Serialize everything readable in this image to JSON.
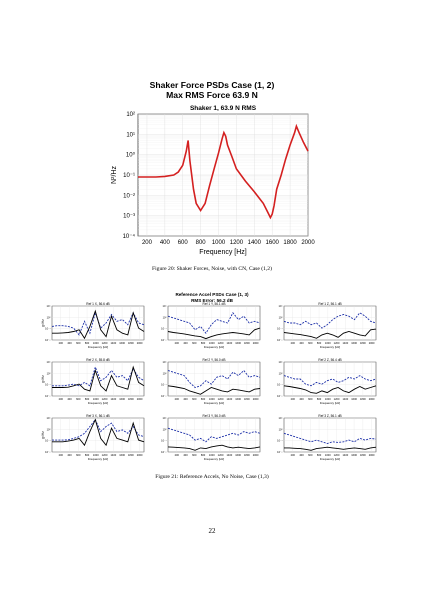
{
  "figure1": {
    "title_line1": "Shaker Force PSDs Case (1, 2)",
    "title_line2": "Max RMS Force 63.9 N",
    "caption": "Figure 20: Shaker Forces, Noise, with CN, Case (1,2)",
    "chart_data": {
      "type": "line",
      "subtitle": "Shaker 1, 63.9 N RMS",
      "xlabel": "Frequency [Hz]",
      "ylabel": "N²/Hz",
      "xlim": [
        100,
        2000
      ],
      "ylim": [
        0.0001,
        100
      ],
      "yscale": "log",
      "xticks": [
        "200",
        "400",
        "600",
        "800",
        "1000",
        "1200",
        "1400",
        "1600",
        "1800",
        "2000"
      ],
      "yticks": [
        "10⁻⁴",
        "10⁻³",
        "10⁻²",
        "10⁻¹",
        "10⁰",
        "10¹",
        "10²"
      ],
      "grid": true,
      "series": [
        {
          "color": "#d42020",
          "x": [
            100,
            200,
            300,
            400,
            500,
            550,
            600,
            640,
            660,
            680,
            700,
            720,
            750,
            800,
            850,
            900,
            950,
            1000,
            1040,
            1060,
            1080,
            1100,
            1150,
            1200,
            1300,
            1400,
            1500,
            1550,
            1580,
            1600,
            1620,
            1650,
            1700,
            1750,
            1800,
            1850,
            1870,
            1900,
            1950,
            2000
          ],
          "y": [
            0.08,
            0.08,
            0.08,
            0.085,
            0.1,
            0.14,
            0.3,
            1.5,
            5,
            0.5,
            0.1,
            0.02,
            0.004,
            0.0018,
            0.004,
            0.03,
            0.2,
            1.2,
            6,
            12,
            8,
            3,
            0.8,
            0.2,
            0.05,
            0.015,
            0.004,
            0.0015,
            0.0008,
            0.0012,
            0.003,
            0.02,
            0.1,
            0.6,
            3,
            12,
            25,
            12,
            4,
            1.5
          ]
        }
      ]
    }
  },
  "figure2": {
    "title_line1": "Reference Accel PSDs Case (1, 3)",
    "title_line2": "RMS Error: 56.2 dB",
    "caption": "Figure 21: Reference Accels, No Noise, Case (1,3)",
    "xlabel": "Frequency [Hz]",
    "ylabel": "g²/Hz",
    "xticks": [
      "200",
      "400",
      "600",
      "800",
      "1000",
      "1200",
      "1400",
      "1600",
      "1800",
      "2000"
    ],
    "yticks": [
      "10⁴",
      "10⁰",
      "10⁻⁴",
      "10⁻⁸"
    ],
    "panels": [
      {
        "label": "Ref 1 X, 56.6 dB",
        "black": [
          0.2,
          0.2,
          0.21,
          0.22,
          0.25,
          0.3,
          0.05,
          0.4,
          0.85,
          0.3,
          0.1,
          0.7,
          0.3,
          0.2,
          0.15,
          0.8,
          0.35,
          0.25
        ],
        "blue": [
          0.4,
          0.42,
          0.42,
          0.4,
          0.35,
          0.15,
          0.55,
          0.2,
          0.8,
          0.35,
          0.5,
          0.75,
          0.55,
          0.6,
          0.45,
          0.8,
          0.5,
          0.45
        ]
      },
      {
        "label": "Ref 1 Y, 56.1 dB",
        "black": [
          0.25,
          0.22,
          0.2,
          0.18,
          0.15,
          0.12,
          0.1,
          0.04,
          0.1,
          0.15,
          0.18,
          0.2,
          0.22,
          0.2,
          0.18,
          0.15,
          0.3,
          0.35
        ],
        "blue": [
          0.7,
          0.65,
          0.6,
          0.55,
          0.5,
          0.3,
          0.4,
          0.2,
          0.45,
          0.6,
          0.55,
          0.5,
          0.8,
          0.6,
          0.7,
          0.5,
          0.55,
          0.5
        ]
      },
      {
        "label": "Ref 1 Z, 56.1 dB",
        "black": [
          0.22,
          0.2,
          0.18,
          0.16,
          0.13,
          0.1,
          0.05,
          0.15,
          0.2,
          0.15,
          0.08,
          0.2,
          0.25,
          0.2,
          0.15,
          0.12,
          0.3,
          0.32
        ],
        "blue": [
          0.55,
          0.5,
          0.5,
          0.45,
          0.55,
          0.45,
          0.5,
          0.35,
          0.45,
          0.6,
          0.7,
          0.75,
          0.7,
          0.6,
          0.8,
          0.7,
          0.55,
          0.5
        ]
      },
      {
        "label": "Ref 2 X, 55.8 dB",
        "black": [
          0.25,
          0.25,
          0.25,
          0.26,
          0.3,
          0.35,
          0.2,
          0.15,
          0.75,
          0.3,
          0.15,
          0.6,
          0.3,
          0.25,
          0.2,
          0.85,
          0.4,
          0.3
        ],
        "blue": [
          0.3,
          0.3,
          0.3,
          0.32,
          0.35,
          0.3,
          0.4,
          0.3,
          0.85,
          0.45,
          0.55,
          0.75,
          0.55,
          0.6,
          0.45,
          0.8,
          0.55,
          0.45
        ]
      },
      {
        "label": "Ref 2 Y, 56.0 dB",
        "black": [
          0.3,
          0.28,
          0.25,
          0.22,
          0.15,
          0.1,
          0.05,
          0.15,
          0.25,
          0.2,
          0.15,
          0.12,
          0.2,
          0.18,
          0.15,
          0.12,
          0.2,
          0.22
        ],
        "blue": [
          0.75,
          0.7,
          0.65,
          0.6,
          0.4,
          0.25,
          0.3,
          0.45,
          0.35,
          0.55,
          0.6,
          0.5,
          0.7,
          0.6,
          0.75,
          0.55,
          0.6,
          0.55
        ]
      },
      {
        "label": "Ref 2 Z, 56.4 dB",
        "black": [
          0.3,
          0.28,
          0.25,
          0.22,
          0.18,
          0.1,
          0.08,
          0.15,
          0.1,
          0.2,
          0.25,
          0.15,
          0.1,
          0.2,
          0.28,
          0.2,
          0.25,
          0.3
        ],
        "blue": [
          0.6,
          0.55,
          0.5,
          0.5,
          0.35,
          0.3,
          0.4,
          0.35,
          0.45,
          0.5,
          0.4,
          0.45,
          0.55,
          0.5,
          0.6,
          0.5,
          0.45,
          0.5
        ]
      },
      {
        "label": "Ref 3 X, 56.1 dB",
        "black": [
          0.3,
          0.3,
          0.3,
          0.32,
          0.35,
          0.4,
          0.2,
          0.6,
          0.95,
          0.4,
          0.2,
          0.7,
          0.4,
          0.35,
          0.3,
          0.85,
          0.35,
          0.3
        ],
        "blue": [
          0.35,
          0.35,
          0.35,
          0.36,
          0.4,
          0.45,
          0.55,
          0.75,
          0.95,
          0.6,
          0.75,
          0.85,
          0.6,
          0.65,
          0.55,
          0.75,
          0.5,
          0.45
        ]
      },
      {
        "label": "Ref 3 Y, 56.0 dB",
        "black": [
          0.15,
          0.14,
          0.13,
          0.12,
          0.1,
          0.05,
          0.12,
          0.1,
          0.15,
          0.18,
          0.2,
          0.15,
          0.12,
          0.14,
          0.12,
          0.1,
          0.12,
          0.15
        ],
        "blue": [
          0.7,
          0.65,
          0.6,
          0.55,
          0.5,
          0.35,
          0.4,
          0.3,
          0.45,
          0.4,
          0.45,
          0.5,
          0.55,
          0.5,
          0.6,
          0.55,
          0.6,
          0.55
        ]
      },
      {
        "label": "Ref 3 Z, 56.1 dB",
        "black": [
          0.12,
          0.12,
          0.11,
          0.1,
          0.08,
          0.05,
          0.1,
          0.12,
          0.14,
          0.12,
          0.1,
          0.08,
          0.1,
          0.12,
          0.1,
          0.08,
          0.12,
          0.14
        ],
        "blue": [
          0.55,
          0.5,
          0.45,
          0.4,
          0.35,
          0.3,
          0.35,
          0.3,
          0.25,
          0.3,
          0.28,
          0.3,
          0.35,
          0.3,
          0.4,
          0.35,
          0.4,
          0.38
        ]
      }
    ]
  },
  "page_number": "22"
}
